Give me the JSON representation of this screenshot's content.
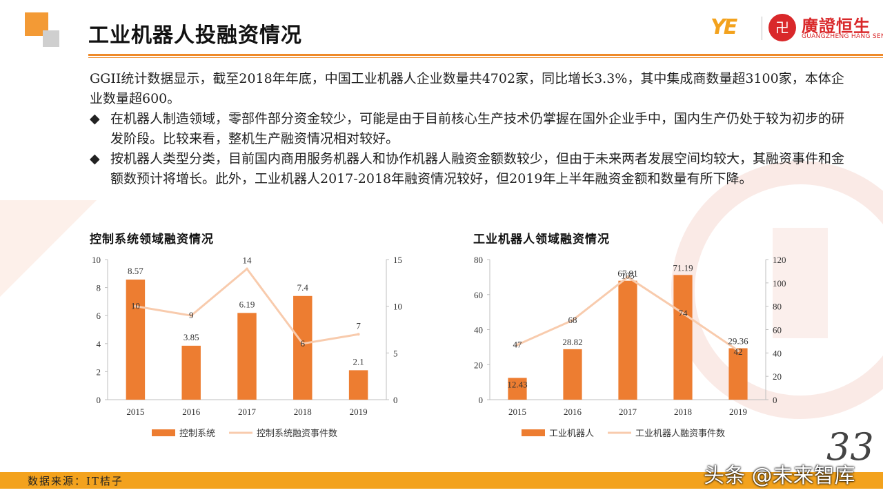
{
  "header": {
    "title": "工业机器人投融资情况",
    "brand_cn": "廣證恒生",
    "brand_en": "GUANGZHENG HANG SENG",
    "brand_mark": "YE",
    "seal_glyph": "卍"
  },
  "body": {
    "intro": "GGII统计数据显示，截至2018年年底，中国工业机器人企业数量共4702家，同比增长3.3%，其中集成商数量超3100家，本体企业数量超600。",
    "bullet_mark": "◆",
    "bullets": [
      "在机器人制造领域，零部件部分资金较少，可能是由于目前核心生产技术仍掌握在国外企业手中，国内生产仍处于较为初步的研发阶段。比较来看，整机生产融资情况相对较好。",
      "按机器人类型分类，目前国内商用服务机器人和协作机器人融资金额数较少，但由于未来两者发展空间均较大，其融资事件和金额数预计将增长。此外，工业机器人2017-2018年融资情况较好，但2019年上半年融资金额和数量有所下降。"
    ]
  },
  "chart_data": [
    {
      "type": "bar",
      "title": "控制系统领域融资情况",
      "categories": [
        "2015",
        "2016",
        "2017",
        "2018",
        "2019"
      ],
      "series": [
        {
          "name": "控制系统",
          "kind": "bar",
          "axis": "left",
          "values": [
            8.57,
            3.85,
            6.19,
            7.4,
            2.1
          ],
          "labels": [
            "8.57",
            "3.85",
            "6.19",
            "7.4",
            "2.1"
          ]
        },
        {
          "name": "控制系统融资事件数",
          "kind": "line",
          "axis": "right",
          "values": [
            10,
            9,
            14,
            6,
            7
          ],
          "labels": [
            "10",
            "9",
            "14",
            "6",
            "7"
          ]
        }
      ],
      "y_left": {
        "min": 0,
        "max": 10,
        "ticks": [
          "0",
          "2",
          "4",
          "6",
          "8",
          "10"
        ]
      },
      "y_right": {
        "min": 0,
        "max": 15,
        "ticks": [
          "0",
          "5",
          "10",
          "15"
        ]
      },
      "legend": "bottom",
      "colors": {
        "bar": "#ed7d31",
        "line": "#f8cbad"
      }
    },
    {
      "type": "bar",
      "title": "工业机器人领域融资情况",
      "categories": [
        "2015",
        "2016",
        "2017",
        "2018",
        "2019"
      ],
      "series": [
        {
          "name": "工业机器人",
          "kind": "bar",
          "axis": "left",
          "values": [
            12.43,
            28.82,
            67.91,
            71.19,
            29.36
          ],
          "labels": [
            "12.43",
            "28.82",
            "67.91",
            "71.19",
            "29.36"
          ]
        },
        {
          "name": "工业机器人融资事件数",
          "kind": "line",
          "axis": "right",
          "values": [
            47,
            68,
            105,
            74,
            42
          ],
          "labels": [
            "47",
            "68",
            "105",
            "74",
            "42"
          ]
        }
      ],
      "y_left": {
        "min": 0,
        "max": 80,
        "ticks": [
          "0",
          "20",
          "40",
          "60",
          "80"
        ]
      },
      "y_right": {
        "min": 0,
        "max": 120,
        "ticks": [
          "0",
          "20",
          "40",
          "60",
          "80",
          "100",
          "120"
        ]
      },
      "legend": "bottom",
      "colors": {
        "bar": "#ed7d31",
        "line": "#f8cbad"
      }
    }
  ],
  "footer": {
    "source": "数据来源：IT桔子",
    "page_number": "33",
    "watermark": "头条 @未来智库"
  }
}
